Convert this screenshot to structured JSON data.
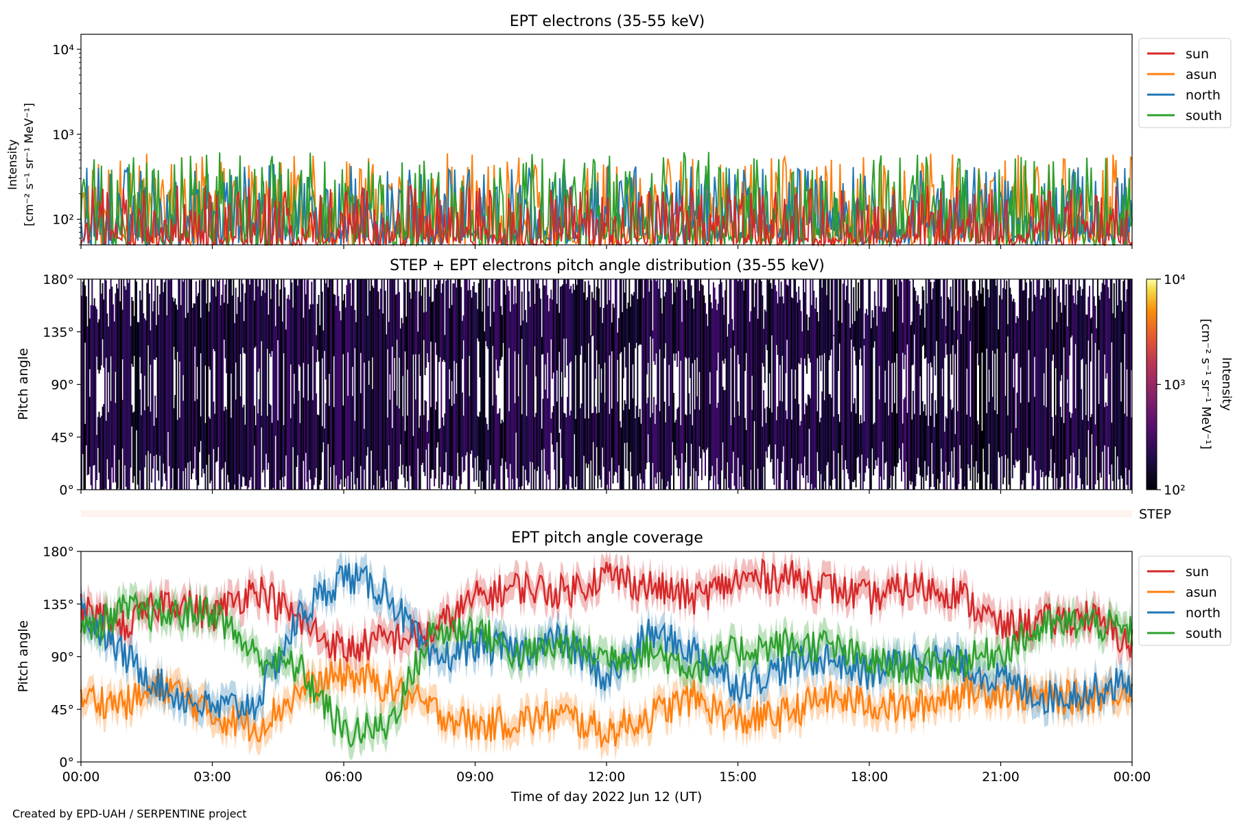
{
  "figure": {
    "footer": "Created by EPD-UAH / SERPENTINE project",
    "xlabel": "Time of day 2022 Jun 12 (UT)",
    "time_ticks": [
      "00:00",
      "03:00",
      "06:00",
      "09:00",
      "12:00",
      "15:00",
      "18:00",
      "21:00",
      "00:00"
    ]
  },
  "chart_data": [
    {
      "type": "line",
      "title": "EPT electrons (35-55 keV)",
      "ylabel_line1": "Intensity",
      "ylabel_line2": "[cm⁻² s⁻¹ sr⁻¹ MeV⁻¹]",
      "yscale": "log",
      "ylim": [
        50,
        15000
      ],
      "ytick_labels": [
        "10²",
        "10³",
        "10⁴"
      ],
      "ytick_values": [
        100,
        1000,
        10000
      ],
      "xlim_hours": [
        0,
        24
      ],
      "legend_position": "right-outside-top",
      "series": [
        {
          "name": "sun",
          "color": "#d62728",
          "typical_range": [
            50,
            250
          ]
        },
        {
          "name": "asun",
          "color": "#ff7f0e",
          "typical_range": [
            60,
            600
          ]
        },
        {
          "name": "north",
          "color": "#1f77b4",
          "typical_range": [
            60,
            450
          ]
        },
        {
          "name": "south",
          "color": "#2ca02c",
          "typical_range": [
            60,
            620
          ]
        }
      ]
    },
    {
      "type": "heatmap",
      "title": "STEP + EPT electrons pitch angle distribution (35-55 keV)",
      "ylabel": "Pitch angle",
      "ylim": [
        0,
        180
      ],
      "ytick_labels": [
        "0°",
        "45°",
        "90°",
        "135°",
        "180°"
      ],
      "colorbar": {
        "label_line1": "Intensity",
        "label_line2": "[cm⁻² s⁻¹ sr⁻¹ MeV⁻¹]",
        "scale": "log",
        "range": [
          100,
          10000
        ],
        "tick_labels": [
          "10²",
          "10³",
          "10⁴"
        ],
        "colormap": "inferno"
      },
      "step_strip_label": "STEP"
    },
    {
      "type": "line",
      "title": "EPT pitch angle coverage",
      "ylabel": "Pitch angle",
      "ylim": [
        0,
        180
      ],
      "ytick_labels": [
        "0°",
        "45°",
        "90°",
        "135°",
        "180°"
      ],
      "xlim_hours": [
        0,
        24
      ],
      "legend_position": "right-outside-top",
      "series": [
        {
          "name": "sun",
          "color": "#d62728",
          "x": [
            0,
            1,
            2,
            3,
            4,
            5,
            6,
            7,
            8,
            9,
            10,
            11,
            12,
            13,
            14,
            15,
            16,
            17,
            18,
            19,
            20,
            21,
            22,
            23,
            24
          ],
          "values": [
            130,
            115,
            140,
            125,
            150,
            120,
            95,
            105,
            110,
            140,
            150,
            145,
            160,
            150,
            140,
            155,
            160,
            150,
            140,
            150,
            145,
            115,
            120,
            125,
            100
          ]
        },
        {
          "name": "asun",
          "color": "#ff7f0e",
          "x": [
            0,
            1,
            2,
            3,
            4,
            5,
            6,
            7,
            8,
            9,
            10,
            11,
            12,
            13,
            14,
            15,
            16,
            17,
            18,
            19,
            20,
            21,
            22,
            23,
            24
          ],
          "values": [
            55,
            50,
            65,
            40,
            30,
            60,
            75,
            65,
            45,
            30,
            35,
            40,
            25,
            40,
            55,
            35,
            40,
            55,
            50,
            45,
            60,
            60,
            55,
            55,
            65
          ]
        },
        {
          "name": "north",
          "color": "#1f77b4",
          "x": [
            0,
            1,
            2,
            3,
            4,
            5,
            6,
            7,
            8,
            9,
            10,
            11,
            12,
            13,
            14,
            15,
            16,
            17,
            18,
            19,
            20,
            21,
            22,
            23,
            24
          ],
          "values": [
            130,
            90,
            60,
            45,
            50,
            125,
            160,
            145,
            85,
            100,
            95,
            105,
            70,
            110,
            95,
            65,
            80,
            90,
            75,
            90,
            85,
            70,
            55,
            60,
            70
          ]
        },
        {
          "name": "south",
          "color": "#2ca02c",
          "x": [
            0,
            1,
            2,
            3,
            4,
            5,
            6,
            7,
            8,
            9,
            10,
            11,
            12,
            13,
            14,
            15,
            16,
            17,
            18,
            19,
            20,
            21,
            22,
            23,
            24
          ],
          "values": [
            110,
            130,
            125,
            130,
            90,
            80,
            25,
            30,
            110,
            115,
            90,
            100,
            90,
            95,
            80,
            95,
            100,
            100,
            85,
            80,
            85,
            95,
            115,
            120,
            110
          ]
        }
      ]
    }
  ]
}
